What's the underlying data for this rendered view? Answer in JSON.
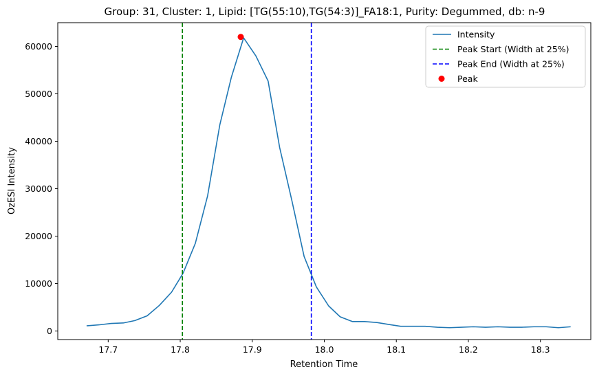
{
  "chart_data": {
    "type": "line",
    "title": "Group: 31, Cluster: 1, Lipid: [TG(55:10),TG(54:3)]_FA18:1, Purity: Degummed, db: n-9",
    "xlabel": "Retention Time",
    "ylabel": "OzESI Intensity",
    "xlim": [
      17.63,
      18.37
    ],
    "ylim": [
      -1800,
      65000
    ],
    "x_ticks": [
      17.7,
      17.8,
      17.9,
      18.0,
      18.1,
      18.2,
      18.3
    ],
    "x_tick_labels": [
      "17.7",
      "17.8",
      "17.9",
      "18.0",
      "18.1",
      "18.2",
      "18.3"
    ],
    "y_ticks": [
      0,
      10000,
      20000,
      30000,
      40000,
      50000,
      60000
    ],
    "y_tick_labels": [
      "0",
      "10000",
      "20000",
      "30000",
      "40000",
      "50000",
      "60000"
    ],
    "grid": false,
    "legend_position": "top-right",
    "series": [
      {
        "name": "Intensity",
        "color": "#1f77b4",
        "style": "solid",
        "x": [
          17.67,
          17.687,
          17.704,
          17.721,
          17.737,
          17.754,
          17.771,
          17.788,
          17.804,
          17.821,
          17.838,
          17.855,
          17.871,
          17.888,
          17.905,
          17.922,
          17.938,
          17.955,
          17.972,
          17.989,
          18.006,
          18.022,
          18.039,
          18.056,
          18.073,
          18.089,
          18.106,
          18.123,
          18.14,
          18.157,
          18.174,
          18.19,
          18.207,
          18.224,
          18.241,
          18.258,
          18.274,
          18.291,
          18.308,
          18.325,
          18.342
        ],
        "y": [
          1100,
          1300,
          1600,
          1700,
          2200,
          3200,
          5400,
          8200,
          12200,
          18500,
          28500,
          43500,
          53500,
          61800,
          58000,
          52700,
          38700,
          27500,
          15700,
          9300,
          5300,
          3000,
          2000,
          2000,
          1800,
          1400,
          1000,
          1000,
          1000,
          800,
          700,
          800,
          900,
          800,
          900,
          800,
          800,
          900,
          900,
          700,
          900
        ]
      },
      {
        "name": "Peak Start (Width at 25%)",
        "color": "#008000",
        "style": "dashed",
        "vline_x": 17.803
      },
      {
        "name": "Peak End (Width at 25%)",
        "color": "#0000ff",
        "style": "dashed",
        "vline_x": 17.982
      },
      {
        "name": "Peak",
        "color": "#ff0000",
        "style": "marker",
        "x": [
          17.884
        ],
        "y": [
          62000
        ]
      }
    ]
  }
}
